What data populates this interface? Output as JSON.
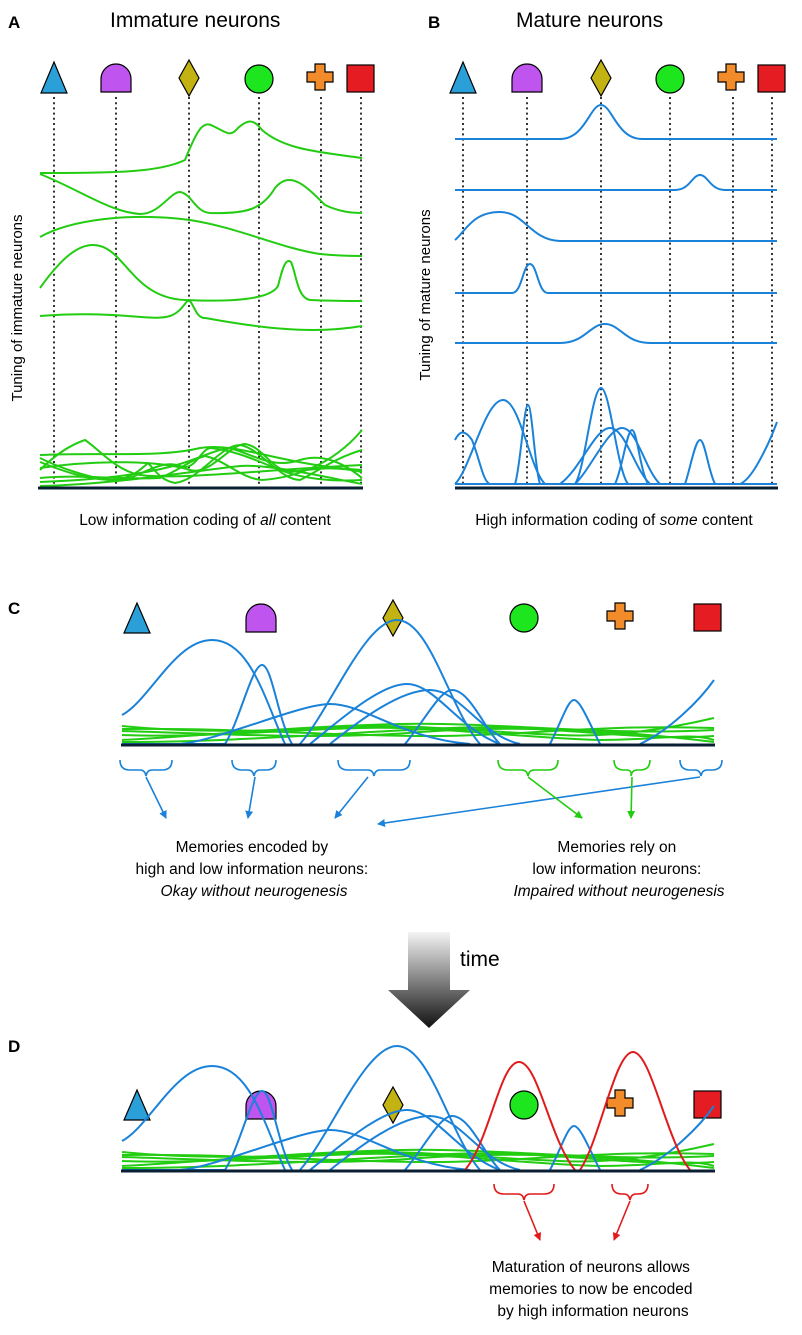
{
  "panels": {
    "a": {
      "letter": "A",
      "title": "Immature neurons",
      "ylabel": "Tuning of immature neurons",
      "caption_pre": "Low information coding of ",
      "caption_em": "all",
      "caption_post": " content"
    },
    "b": {
      "letter": "B",
      "title": "Mature neurons",
      "ylabel": "Tuning of mature neurons",
      "caption_pre": "High information coding of ",
      "caption_em": "some",
      "caption_post": " content"
    },
    "c": {
      "letter": "C",
      "left_note": [
        "Memories encoded by",
        "high and low information neurons:",
        "Okay without neurogenesis"
      ],
      "right_note": [
        "Memories rely on",
        "low information neurons:",
        "Impaired without neurogenesis"
      ]
    },
    "time_label": "time",
    "d": {
      "letter": "D",
      "note": [
        "Maturation of neurons allows",
        "memories to now be encoded",
        "by high information neurons"
      ]
    }
  },
  "stimuli": [
    {
      "shape": "triangle",
      "color": "#2a9fd8"
    },
    {
      "shape": "half-circle",
      "color": "#c054ee"
    },
    {
      "shape": "diamond",
      "color": "#c2b212"
    },
    {
      "shape": "circle",
      "color": "#1ee61e"
    },
    {
      "shape": "cross",
      "color": "#f28c2a"
    },
    {
      "shape": "square",
      "color": "#e51d23"
    }
  ],
  "colors": {
    "immature": "#22cc11",
    "mature": "#1a82d9",
    "matured": "#e01b1b"
  }
}
